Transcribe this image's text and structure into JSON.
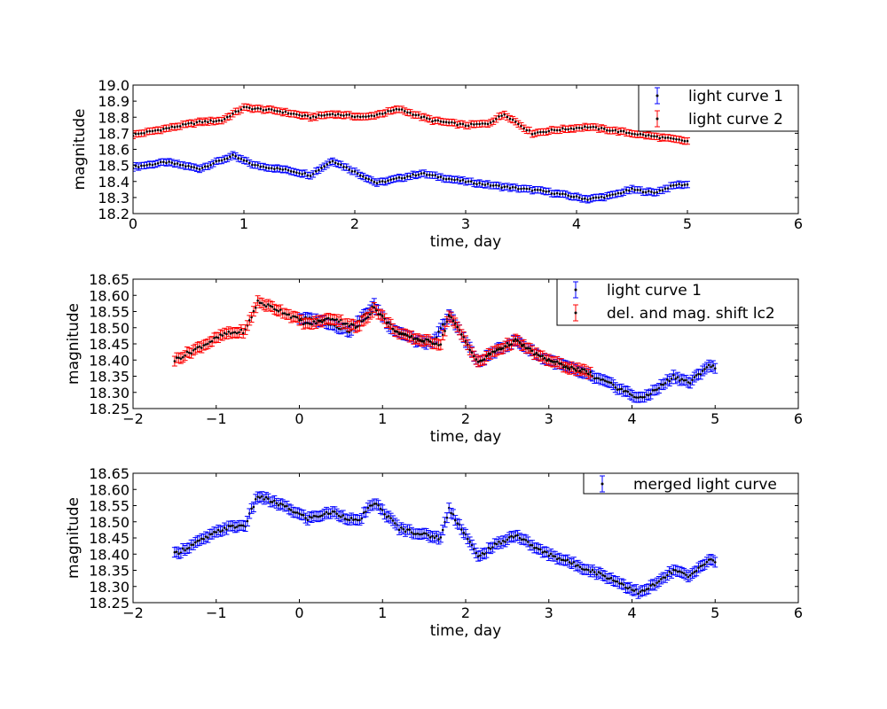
{
  "colors": {
    "series_a": "#0000ff",
    "series_b": "#ff0000",
    "point": "#000000",
    "axes": "#000000"
  },
  "chart_data": [
    {
      "type": "scatter",
      "xlabel": "time, day",
      "ylabel": "magnitude",
      "xlim": [
        0,
        6
      ],
      "ylim": [
        18.2,
        19.0
      ],
      "xticks": [
        0,
        1,
        2,
        3,
        4,
        5,
        6
      ],
      "xtick_labels": [
        "0",
        "1",
        "2",
        "3",
        "4",
        "5",
        "6"
      ],
      "yticks": [
        18.2,
        18.3,
        18.4,
        18.5,
        18.6,
        18.7,
        18.8,
        18.9,
        19.0
      ],
      "ytick_labels": [
        "18.2",
        "18.3",
        "18.4",
        "18.5",
        "18.6",
        "18.7",
        "18.8",
        "18.9",
        "19.0"
      ],
      "legend_position": "top-right",
      "series": [
        {
          "name": "light curve 1",
          "color": "#0000ff",
          "err": 0.02,
          "x_start": 0.0,
          "x_end": 5.0,
          "knots": [
            [
              0.0,
              18.49
            ],
            [
              0.3,
              18.52
            ],
            [
              0.6,
              18.48
            ],
            [
              0.9,
              18.56
            ],
            [
              1.1,
              18.5
            ],
            [
              1.4,
              18.47
            ],
            [
              1.6,
              18.44
            ],
            [
              1.8,
              18.53
            ],
            [
              2.0,
              18.46
            ],
            [
              2.2,
              18.39
            ],
            [
              2.6,
              18.45
            ],
            [
              2.9,
              18.41
            ],
            [
              3.3,
              18.37
            ],
            [
              3.7,
              18.34
            ],
            [
              4.1,
              18.29
            ],
            [
              4.3,
              18.31
            ],
            [
              4.5,
              18.35
            ],
            [
              4.7,
              18.33
            ],
            [
              4.9,
              18.38
            ],
            [
              5.0,
              18.38
            ]
          ]
        },
        {
          "name": "light curve 2",
          "color": "#ff0000",
          "err": 0.02,
          "x_start": 0.0,
          "x_end": 5.0,
          "knots": [
            [
              0.0,
              18.69
            ],
            [
              0.3,
              18.73
            ],
            [
              0.6,
              18.77
            ],
            [
              0.8,
              18.78
            ],
            [
              1.0,
              18.86
            ],
            [
              1.3,
              18.84
            ],
            [
              1.6,
              18.8
            ],
            [
              1.8,
              18.82
            ],
            [
              2.1,
              18.8
            ],
            [
              2.4,
              18.85
            ],
            [
              2.7,
              18.78
            ],
            [
              3.0,
              18.75
            ],
            [
              3.2,
              18.76
            ],
            [
              3.35,
              18.82
            ],
            [
              3.6,
              18.7
            ],
            [
              3.8,
              18.72
            ],
            [
              4.1,
              18.74
            ],
            [
              4.4,
              18.71
            ],
            [
              4.7,
              18.68
            ],
            [
              5.0,
              18.65
            ]
          ]
        }
      ]
    },
    {
      "type": "scatter",
      "xlabel": "time, day",
      "ylabel": "magnitude",
      "xlim": [
        -2,
        6
      ],
      "ylim": [
        18.25,
        18.65
      ],
      "xticks": [
        -2,
        -1,
        0,
        1,
        2,
        3,
        4,
        5,
        6
      ],
      "xtick_labels": [
        "−2",
        "−1",
        "0",
        "1",
        "2",
        "3",
        "4",
        "5",
        "6"
      ],
      "yticks": [
        18.25,
        18.3,
        18.35,
        18.4,
        18.45,
        18.5,
        18.55,
        18.6,
        18.65
      ],
      "ytick_labels": [
        "18.25",
        "18.30",
        "18.35",
        "18.40",
        "18.45",
        "18.50",
        "18.55",
        "18.60",
        "18.65"
      ],
      "legend_position": "top-right",
      "series": [
        {
          "name": "light curve 1",
          "color": "#0000ff",
          "err": 0.015,
          "x_start": 0.0,
          "x_end": 5.0,
          "knots": [
            [
              0.0,
              18.53
            ],
            [
              0.3,
              18.52
            ],
            [
              0.6,
              18.49
            ],
            [
              0.9,
              18.57
            ],
            [
              1.1,
              18.5
            ],
            [
              1.4,
              18.46
            ],
            [
              1.6,
              18.45
            ],
            [
              1.8,
              18.54
            ],
            [
              2.0,
              18.46
            ],
            [
              2.15,
              18.39
            ],
            [
              2.3,
              18.42
            ],
            [
              2.6,
              18.46
            ],
            [
              2.9,
              18.41
            ],
            [
              3.3,
              18.37
            ],
            [
              3.7,
              18.33
            ],
            [
              4.1,
              18.28
            ],
            [
              4.3,
              18.31
            ],
            [
              4.5,
              18.35
            ],
            [
              4.7,
              18.33
            ],
            [
              4.9,
              18.38
            ],
            [
              5.0,
              18.38
            ]
          ]
        },
        {
          "name": "del. and mag. shift lc2",
          "color": "#ff0000",
          "err": 0.015,
          "x_start": -1.5,
          "x_end": 3.5,
          "knots": [
            [
              -1.5,
              18.4
            ],
            [
              -1.2,
              18.44
            ],
            [
              -0.9,
              18.48
            ],
            [
              -0.65,
              18.49
            ],
            [
              -0.5,
              18.58
            ],
            [
              -0.2,
              18.55
            ],
            [
              0.1,
              18.51
            ],
            [
              0.4,
              18.53
            ],
            [
              0.7,
              18.5
            ],
            [
              0.9,
              18.56
            ],
            [
              1.2,
              18.48
            ],
            [
              1.5,
              18.46
            ],
            [
              1.7,
              18.45
            ],
            [
              1.8,
              18.54
            ],
            [
              2.0,
              18.46
            ],
            [
              2.15,
              18.39
            ],
            [
              2.3,
              18.42
            ],
            [
              2.6,
              18.46
            ],
            [
              2.9,
              18.41
            ],
            [
              3.2,
              18.38
            ],
            [
              3.5,
              18.36
            ]
          ]
        }
      ]
    },
    {
      "type": "scatter",
      "xlabel": "time, day",
      "ylabel": "magnitude",
      "xlim": [
        -2,
        6
      ],
      "ylim": [
        18.25,
        18.65
      ],
      "xticks": [
        -2,
        -1,
        0,
        1,
        2,
        3,
        4,
        5,
        6
      ],
      "xtick_labels": [
        "−2",
        "−1",
        "0",
        "1",
        "2",
        "3",
        "4",
        "5",
        "6"
      ],
      "yticks": [
        18.25,
        18.3,
        18.35,
        18.4,
        18.45,
        18.5,
        18.55,
        18.6,
        18.65
      ],
      "ytick_labels": [
        "18.25",
        "18.30",
        "18.35",
        "18.40",
        "18.45",
        "18.50",
        "18.55",
        "18.60",
        "18.65"
      ],
      "legend_position": "top-right",
      "series": [
        {
          "name": "merged light curve",
          "color": "#0000ff",
          "err": 0.015,
          "x_start": -1.5,
          "x_end": 5.0,
          "knots": [
            [
              -1.5,
              18.4
            ],
            [
              -1.2,
              18.44
            ],
            [
              -0.9,
              18.48
            ],
            [
              -0.65,
              18.49
            ],
            [
              -0.5,
              18.58
            ],
            [
              -0.2,
              18.55
            ],
            [
              0.1,
              18.51
            ],
            [
              0.4,
              18.53
            ],
            [
              0.7,
              18.5
            ],
            [
              0.9,
              18.56
            ],
            [
              1.2,
              18.48
            ],
            [
              1.5,
              18.46
            ],
            [
              1.7,
              18.45
            ],
            [
              1.8,
              18.54
            ],
            [
              2.0,
              18.46
            ],
            [
              2.15,
              18.39
            ],
            [
              2.3,
              18.42
            ],
            [
              2.6,
              18.46
            ],
            [
              2.9,
              18.41
            ],
            [
              3.3,
              18.37
            ],
            [
              3.7,
              18.33
            ],
            [
              4.1,
              18.28
            ],
            [
              4.3,
              18.31
            ],
            [
              4.5,
              18.35
            ],
            [
              4.7,
              18.33
            ],
            [
              4.9,
              18.38
            ],
            [
              5.0,
              18.38
            ]
          ]
        }
      ]
    }
  ]
}
